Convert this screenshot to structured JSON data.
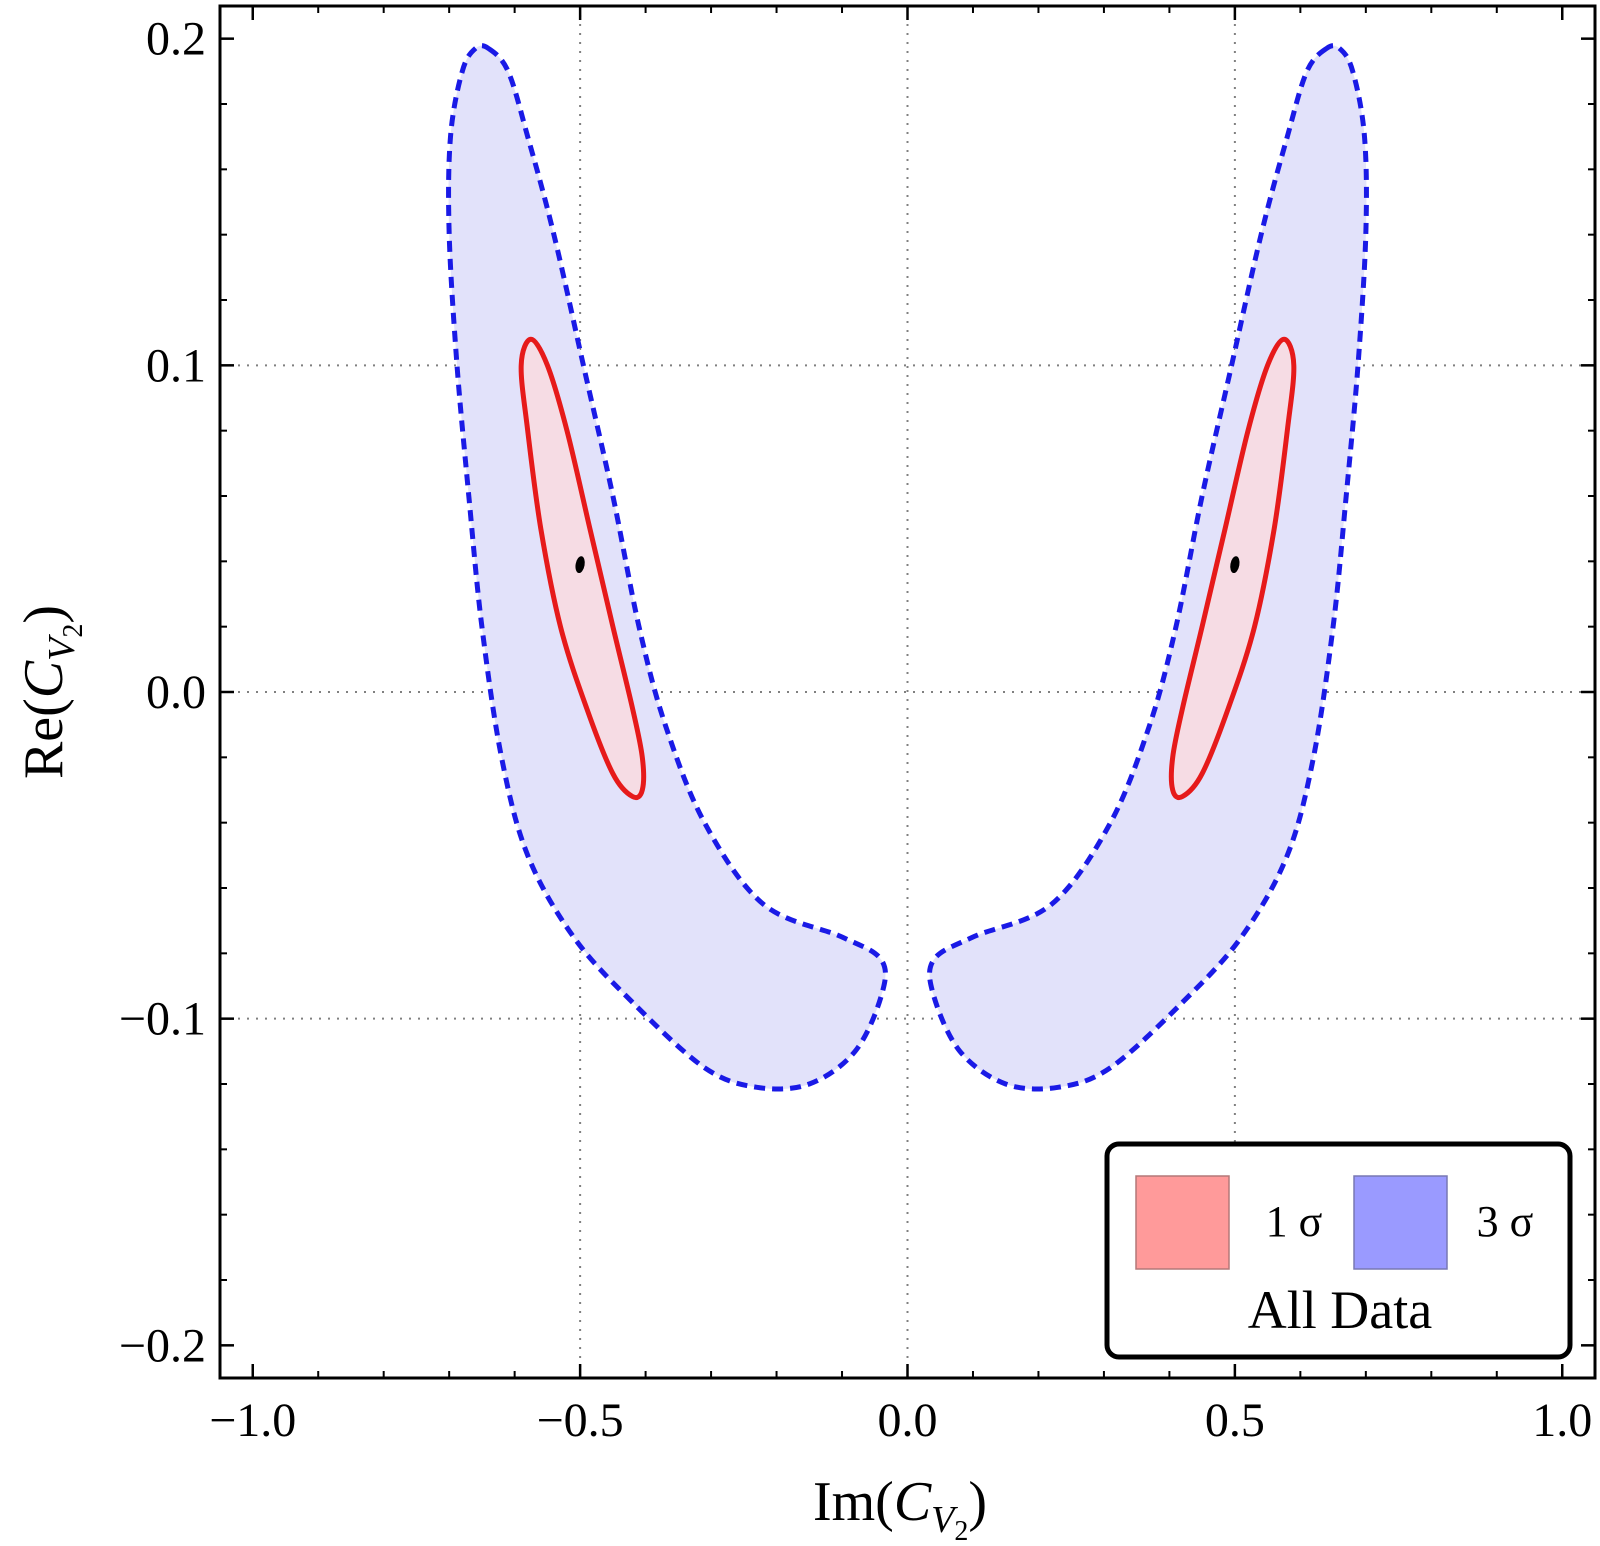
{
  "chart_data": {
    "type": "contour",
    "title": "",
    "xlabel": "Im(C_V2)",
    "ylabel": "Re(C_V2)",
    "xlabel_parts": {
      "prefix": "Im(",
      "symbol": "C",
      "sub": "V",
      "subsub": "2",
      "suffix": ")"
    },
    "ylabel_parts": {
      "prefix": "Re(",
      "symbol": "C",
      "sub": "V",
      "subsub": "2",
      "suffix": ")"
    },
    "xlim": [
      -1.05,
      1.05
    ],
    "ylim": [
      -0.21,
      0.21
    ],
    "xticks": [
      -1.0,
      -0.5,
      0.0,
      0.5,
      1.0
    ],
    "xtick_labels": [
      "−1.0",
      "−0.5",
      "0.0",
      "0.5",
      "1.0"
    ],
    "yticks": [
      -0.2,
      -0.1,
      0.0,
      0.1,
      0.2
    ],
    "ytick_labels": [
      "−0.2",
      "−0.1",
      "0.0",
      "0.1",
      "0.2"
    ],
    "gridlines_x": [
      -0.5,
      0.0,
      0.5
    ],
    "gridlines_y": [
      -0.1,
      0.0,
      0.1
    ],
    "legend": {
      "position": "bottom-right",
      "title": "All Data",
      "entries": [
        {
          "label": "1 σ",
          "color": "#ff9a9a"
        },
        {
          "label": "3 σ",
          "color": "#9a9aff"
        }
      ]
    },
    "series": [
      {
        "name": "3 sigma (left)",
        "fill": "#e2e2fa",
        "stroke": "#1a1ae6",
        "style": "dashed",
        "points": [
          [
            -0.64,
            0.197
          ],
          [
            -0.61,
            0.19
          ],
          [
            -0.58,
            0.17
          ],
          [
            -0.54,
            0.14
          ],
          [
            -0.495,
            0.1
          ],
          [
            -0.45,
            0.06
          ],
          [
            -0.41,
            0.02
          ],
          [
            -0.37,
            -0.01
          ],
          [
            -0.31,
            -0.04
          ],
          [
            -0.22,
            -0.065
          ],
          [
            -0.1,
            -0.075
          ],
          [
            -0.04,
            -0.082
          ],
          [
            -0.04,
            -0.093
          ],
          [
            -0.08,
            -0.11
          ],
          [
            -0.15,
            -0.12
          ],
          [
            -0.23,
            -0.121
          ],
          [
            -0.31,
            -0.115
          ],
          [
            -0.42,
            -0.095
          ],
          [
            -0.51,
            -0.075
          ],
          [
            -0.58,
            -0.05
          ],
          [
            -0.62,
            -0.02
          ],
          [
            -0.65,
            0.02
          ],
          [
            -0.67,
            0.06
          ],
          [
            -0.688,
            0.1
          ],
          [
            -0.7,
            0.14
          ],
          [
            -0.698,
            0.17
          ],
          [
            -0.68,
            0.19
          ],
          [
            -0.66,
            0.197
          ]
        ]
      },
      {
        "name": "3 sigma (right)",
        "fill": "#e2e2fa",
        "stroke": "#1a1ae6",
        "style": "dashed",
        "points": [
          [
            0.64,
            0.197
          ],
          [
            0.61,
            0.19
          ],
          [
            0.58,
            0.17
          ],
          [
            0.54,
            0.14
          ],
          [
            0.495,
            0.1
          ],
          [
            0.45,
            0.06
          ],
          [
            0.41,
            0.02
          ],
          [
            0.37,
            -0.01
          ],
          [
            0.31,
            -0.04
          ],
          [
            0.22,
            -0.065
          ],
          [
            0.1,
            -0.075
          ],
          [
            0.04,
            -0.082
          ],
          [
            0.04,
            -0.093
          ],
          [
            0.08,
            -0.11
          ],
          [
            0.15,
            -0.12
          ],
          [
            0.23,
            -0.121
          ],
          [
            0.31,
            -0.115
          ],
          [
            0.42,
            -0.095
          ],
          [
            0.51,
            -0.075
          ],
          [
            0.58,
            -0.05
          ],
          [
            0.62,
            -0.02
          ],
          [
            0.65,
            0.02
          ],
          [
            0.67,
            0.06
          ],
          [
            0.688,
            0.1
          ],
          [
            0.7,
            0.14
          ],
          [
            0.698,
            0.17
          ],
          [
            0.68,
            0.19
          ],
          [
            0.66,
            0.197
          ]
        ]
      },
      {
        "name": "1 sigma (left)",
        "fill": "#f6dce4",
        "stroke": "#e61a1a",
        "style": "solid",
        "points": [
          [
            -0.575,
            0.108
          ],
          [
            -0.55,
            0.1
          ],
          [
            -0.52,
            0.08
          ],
          [
            -0.485,
            0.05
          ],
          [
            -0.45,
            0.02
          ],
          [
            -0.42,
            -0.005
          ],
          [
            -0.405,
            -0.02
          ],
          [
            -0.405,
            -0.03
          ],
          [
            -0.42,
            -0.032
          ],
          [
            -0.45,
            -0.025
          ],
          [
            -0.49,
            -0.005
          ],
          [
            -0.53,
            0.02
          ],
          [
            -0.56,
            0.05
          ],
          [
            -0.58,
            0.08
          ],
          [
            -0.59,
            0.1
          ]
        ]
      },
      {
        "name": "1 sigma (right)",
        "fill": "#f6dce4",
        "stroke": "#e61a1a",
        "style": "solid",
        "points": [
          [
            0.575,
            0.108
          ],
          [
            0.55,
            0.1
          ],
          [
            0.52,
            0.08
          ],
          [
            0.485,
            0.05
          ],
          [
            0.45,
            0.02
          ],
          [
            0.42,
            -0.005
          ],
          [
            0.405,
            -0.02
          ],
          [
            0.405,
            -0.03
          ],
          [
            0.42,
            -0.032
          ],
          [
            0.45,
            -0.025
          ],
          [
            0.49,
            -0.005
          ],
          [
            0.53,
            0.02
          ],
          [
            0.56,
            0.05
          ],
          [
            0.58,
            0.08
          ],
          [
            0.59,
            0.1
          ]
        ]
      }
    ],
    "best_fit_points": [
      [
        -0.5,
        0.039
      ],
      [
        0.5,
        0.039
      ]
    ]
  }
}
